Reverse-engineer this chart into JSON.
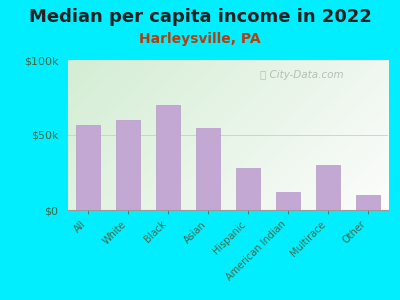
{
  "title": "Median per capita income in 2022",
  "subtitle": "Harleysville, PA",
  "categories": [
    "All",
    "White",
    "Black",
    "Asian",
    "Hispanic",
    "American Indian",
    "Multirace",
    "Other"
  ],
  "values": [
    57000,
    60000,
    70000,
    55000,
    28000,
    12000,
    30000,
    10000
  ],
  "bar_color": "#c4a8d4",
  "bar_edge_color": "#b898c8",
  "background_outer": "#00eeff",
  "title_color": "#222222",
  "subtitle_color": "#b04010",
  "tick_color": "#446644",
  "watermark_text": "City-Data.com",
  "ylim": [
    0,
    100000
  ],
  "ytick_labels": [
    "$0",
    "$50k",
    "$100k"
  ],
  "title_fontsize": 13,
  "subtitle_fontsize": 10
}
